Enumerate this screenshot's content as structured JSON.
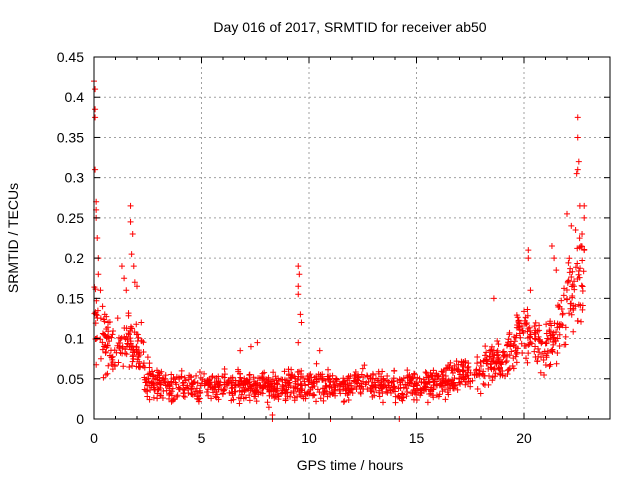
{
  "chart_data": {
    "type": "scatter",
    "title": "Day 016 of 2017, SRMTID for receiver ab50",
    "xlabel": "GPS time / hours",
    "ylabel": "SRMTID / TECUs",
    "xlim": [
      0,
      24
    ],
    "ylim": [
      0,
      0.45
    ],
    "x_ticks": [
      0,
      5,
      10,
      15,
      20
    ],
    "y_ticks": [
      0,
      0.05,
      0.1,
      0.15,
      0.2,
      0.25,
      0.3,
      0.35,
      0.4,
      0.45
    ],
    "x_tick_labels": [
      "0",
      "5",
      "10",
      "15",
      "20"
    ],
    "y_tick_labels": [
      "0",
      "0.05",
      "0.1",
      "0.15",
      "0.2",
      "0.25",
      "0.3",
      "0.35",
      "0.4",
      "0.45"
    ],
    "grid": true,
    "marker": "+",
    "color": "#ff0000",
    "series": [
      {
        "name": "SRMTID",
        "profile": [
          {
            "x": 0.0,
            "y": 0.12,
            "spread": 0.05
          },
          {
            "x": 0.5,
            "y": 0.09,
            "spread": 0.03
          },
          {
            "x": 1.0,
            "y": 0.085,
            "spread": 0.03
          },
          {
            "x": 1.5,
            "y": 0.1,
            "spread": 0.035
          },
          {
            "x": 2.0,
            "y": 0.09,
            "spread": 0.03
          },
          {
            "x": 2.5,
            "y": 0.045,
            "spread": 0.02
          },
          {
            "x": 4.0,
            "y": 0.04,
            "spread": 0.016
          },
          {
            "x": 6.0,
            "y": 0.042,
            "spread": 0.016
          },
          {
            "x": 8.0,
            "y": 0.04,
            "spread": 0.016
          },
          {
            "x": 9.5,
            "y": 0.045,
            "spread": 0.02
          },
          {
            "x": 11.0,
            "y": 0.04,
            "spread": 0.016
          },
          {
            "x": 13.0,
            "y": 0.045,
            "spread": 0.016
          },
          {
            "x": 15.0,
            "y": 0.038,
            "spread": 0.016
          },
          {
            "x": 16.0,
            "y": 0.045,
            "spread": 0.016
          },
          {
            "x": 17.0,
            "y": 0.055,
            "spread": 0.018
          },
          {
            "x": 18.0,
            "y": 0.06,
            "spread": 0.02
          },
          {
            "x": 19.0,
            "y": 0.075,
            "spread": 0.022
          },
          {
            "x": 19.5,
            "y": 0.09,
            "spread": 0.025
          },
          {
            "x": 20.0,
            "y": 0.11,
            "spread": 0.03
          },
          {
            "x": 20.5,
            "y": 0.1,
            "spread": 0.03
          },
          {
            "x": 21.0,
            "y": 0.09,
            "spread": 0.03
          },
          {
            "x": 21.5,
            "y": 0.11,
            "spread": 0.035
          },
          {
            "x": 22.0,
            "y": 0.14,
            "spread": 0.05
          },
          {
            "x": 22.5,
            "y": 0.17,
            "spread": 0.05
          },
          {
            "x": 22.8,
            "y": 0.18,
            "spread": 0.04
          }
        ],
        "outliers": [
          {
            "x": 0.0,
            "y": 0.42
          },
          {
            "x": 0.05,
            "y": 0.41
          },
          {
            "x": 0.05,
            "y": 0.385
          },
          {
            "x": 0.05,
            "y": 0.375
          },
          {
            "x": 0.05,
            "y": 0.31
          },
          {
            "x": 0.1,
            "y": 0.27
          },
          {
            "x": 0.1,
            "y": 0.26
          },
          {
            "x": 0.1,
            "y": 0.25
          },
          {
            "x": 0.15,
            "y": 0.225
          },
          {
            "x": 0.2,
            "y": 0.2
          },
          {
            "x": 0.2,
            "y": 0.18
          },
          {
            "x": 0.3,
            "y": 0.16
          },
          {
            "x": 0.4,
            "y": 0.14
          },
          {
            "x": 0.5,
            "y": 0.13
          },
          {
            "x": 1.3,
            "y": 0.19
          },
          {
            "x": 1.4,
            "y": 0.175
          },
          {
            "x": 1.5,
            "y": 0.16
          },
          {
            "x": 1.7,
            "y": 0.265
          },
          {
            "x": 1.7,
            "y": 0.245
          },
          {
            "x": 1.8,
            "y": 0.23
          },
          {
            "x": 1.75,
            "y": 0.205
          },
          {
            "x": 1.85,
            "y": 0.19
          },
          {
            "x": 1.9,
            "y": 0.17
          },
          {
            "x": 2.0,
            "y": 0.165
          },
          {
            "x": 2.2,
            "y": 0.12
          },
          {
            "x": 6.8,
            "y": 0.085
          },
          {
            "x": 7.3,
            "y": 0.09
          },
          {
            "x": 7.6,
            "y": 0.095
          },
          {
            "x": 8.3,
            "y": 0.005
          },
          {
            "x": 8.3,
            "y": 0.0
          },
          {
            "x": 9.5,
            "y": 0.19
          },
          {
            "x": 9.55,
            "y": 0.18
          },
          {
            "x": 9.5,
            "y": 0.165
          },
          {
            "x": 9.5,
            "y": 0.155
          },
          {
            "x": 9.6,
            "y": 0.13
          },
          {
            "x": 9.65,
            "y": 0.12
          },
          {
            "x": 9.5,
            "y": 0.095
          },
          {
            "x": 10.5,
            "y": 0.085
          },
          {
            "x": 11.0,
            "y": 0.0
          },
          {
            "x": 14.2,
            "y": 0.0
          },
          {
            "x": 18.6,
            "y": 0.15
          },
          {
            "x": 20.2,
            "y": 0.21
          },
          {
            "x": 20.2,
            "y": 0.2
          },
          {
            "x": 20.3,
            "y": 0.16
          },
          {
            "x": 21.3,
            "y": 0.215
          },
          {
            "x": 21.4,
            "y": 0.2
          },
          {
            "x": 21.5,
            "y": 0.185
          },
          {
            "x": 22.0,
            "y": 0.255
          },
          {
            "x": 22.2,
            "y": 0.24
          },
          {
            "x": 22.4,
            "y": 0.235
          },
          {
            "x": 22.5,
            "y": 0.375
          },
          {
            "x": 22.5,
            "y": 0.35
          },
          {
            "x": 22.55,
            "y": 0.32
          },
          {
            "x": 22.5,
            "y": 0.31
          },
          {
            "x": 22.45,
            "y": 0.305
          },
          {
            "x": 22.6,
            "y": 0.265
          },
          {
            "x": 22.8,
            "y": 0.265
          },
          {
            "x": 22.8,
            "y": 0.25
          },
          {
            "x": 22.7,
            "y": 0.23
          },
          {
            "x": 22.8,
            "y": 0.21
          }
        ]
      }
    ]
  }
}
